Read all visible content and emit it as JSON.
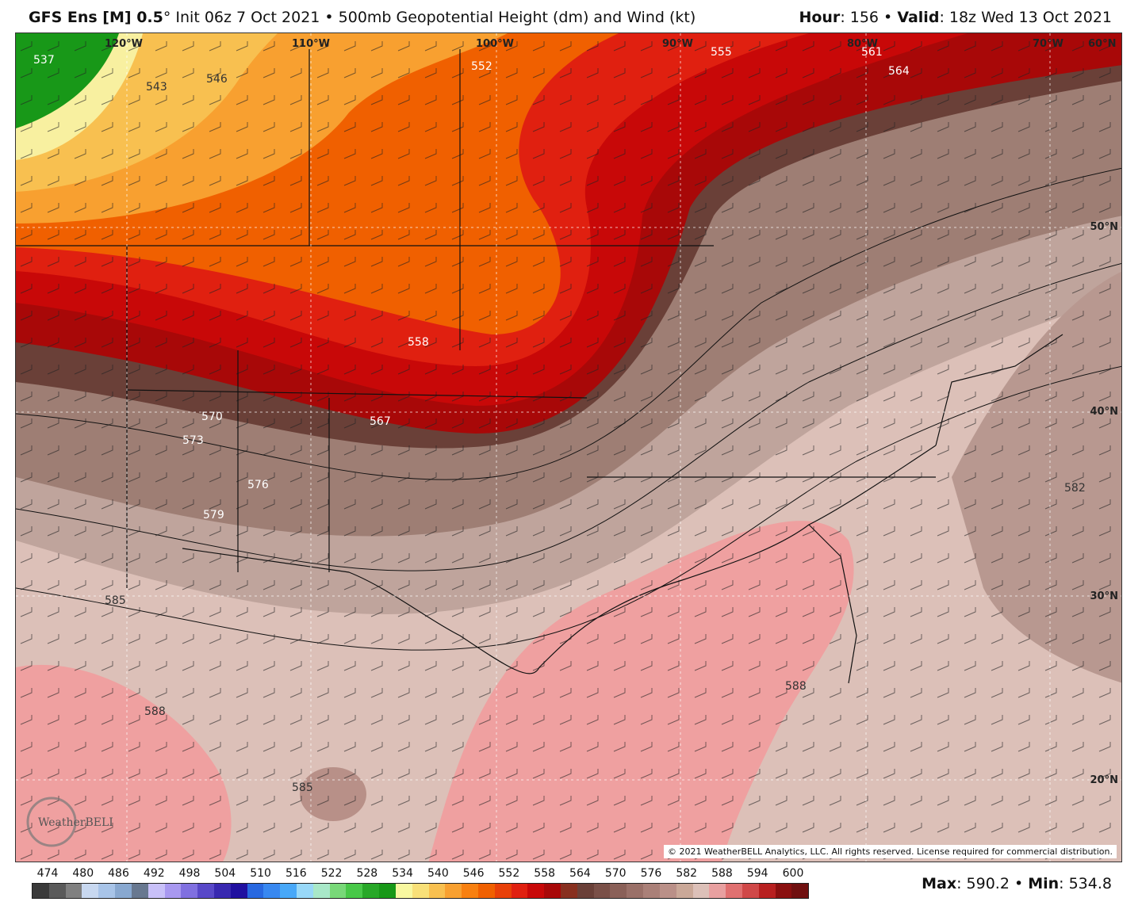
{
  "header": {
    "model": "GFS Ens [M] 0.5",
    "degree": "°",
    "init": " Init 06z 7 Oct 2021 • 500mb Geopotential Height (dm) and Wind (kt)",
    "hour_label": "Hour",
    "hour_value": ": 156 • ",
    "valid_label": "Valid",
    "valid_value": ": 18z Wed 13 Oct 2021"
  },
  "map": {
    "longitude_labels": [
      "120°W",
      "110°W",
      "100°W",
      "90°W",
      "80°W",
      "70°W",
      "60°N"
    ],
    "latitude_labels": [
      "50°N",
      "40°N",
      "30°N",
      "20°N"
    ],
    "contour_labels": [
      "537",
      "543",
      "546",
      "552",
      "555",
      "561",
      "564",
      "558",
      "567",
      "570",
      "573",
      "576",
      "579",
      "585",
      "588",
      "582",
      "588",
      "585"
    ],
    "copyright": "© 2021 WeatherBELL Analytics, LLC. All rights reserved. License required for commercial distribution.",
    "logo_text": "WeatherBELL"
  },
  "legend": {
    "ticks": [
      "474",
      "480",
      "486",
      "492",
      "498",
      "504",
      "510",
      "516",
      "522",
      "528",
      "534",
      "540",
      "546",
      "552",
      "558",
      "564",
      "570",
      "576",
      "582",
      "588",
      "594",
      "600"
    ],
    "colors": [
      "#3a3a3a",
      "#5a5a5a",
      "#808080",
      "#c8d8f0",
      "#a8c4e8",
      "#88a8d0",
      "#687890",
      "#c8c0f8",
      "#a898f0",
      "#8070e0",
      "#5848c8",
      "#3828b0",
      "#2010a0",
      "#2868e0",
      "#3888f0",
      "#48a8f8",
      "#98d8f8",
      "#a8e8c8",
      "#78d878",
      "#48c848",
      "#28a828",
      "#189818",
      "#f8f8a0",
      "#f8e078",
      "#f8c050",
      "#f8a030",
      "#f88010",
      "#f06000",
      "#e84008",
      "#e02010",
      "#c80808",
      "#a80808",
      "#883020",
      "#6a4038",
      "#7a5048",
      "#8a6058",
      "#9a7068",
      "#aa8078",
      "#ba9088",
      "#caa898",
      "#dcc0b8",
      "#e8a0a0",
      "#e07070",
      "#d04848",
      "#b82020",
      "#8a1010",
      "#701010"
    ]
  },
  "stats": {
    "max_label": "Max",
    "max_value": ": 590.2 • ",
    "min_label": "Min",
    "min_value": ": 534.8"
  }
}
